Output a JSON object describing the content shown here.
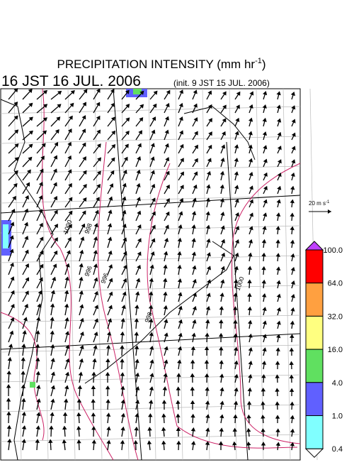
{
  "header": {
    "title": "PRECIPITATION INTENSITY (mm hr",
    "title_exponent": "-1",
    "title_close": ")",
    "valid_time": "16 JST 16 JUL. 2006",
    "init_time": "(init. 9 JST 15 JUL. 2006)"
  },
  "vector_scale": {
    "label": "20 m s",
    "exponent": "-1"
  },
  "colorbar": {
    "labels": [
      "100.0",
      "64.0",
      "32.0",
      "16.0",
      "4.0",
      "1.0",
      "0.4"
    ],
    "colors": [
      "#ff0000",
      "#ffa040",
      "#ffff80",
      "#60e060",
      "#6060ff",
      "#80ffff"
    ],
    "over_color": "#c040ff",
    "under_color": "#ffffff"
  },
  "contour_labels": [
    "1000",
    "998",
    "996",
    "996",
    "998",
    "1000"
  ]
}
